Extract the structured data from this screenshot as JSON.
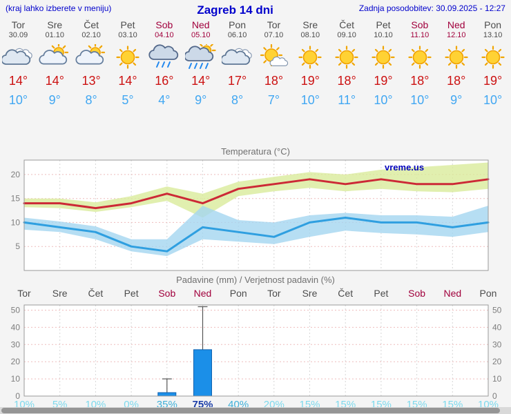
{
  "header": {
    "left_note": "(kraj lahko izberete v meniju)",
    "title": "Zagreb 14 dni",
    "updated": "Zadnja posodobitev: 30.09.2025 - 12:27"
  },
  "watermark": "vreme.us",
  "colors": {
    "link_blue": "#0000cc",
    "max_temp_red": "#cc1111",
    "min_temp_blue": "#41a7f2",
    "weekday_gray": "#4c4c4c",
    "weekend_red": "#a1003c",
    "bar_blue": "#1b8fe8",
    "bar_border": "#0f62b0",
    "prob_high": "#1c3ea8",
    "prob_mid": "#3fb0d8",
    "prob_low": "#7cd9ec",
    "grid_pink": "#eebbbb",
    "grid_gray": "#d6d6d6"
  },
  "days": [
    {
      "name": "Tor",
      "date": "30.09",
      "weekend": false,
      "icon": "cloudy",
      "tmax_label": "14°",
      "tmin_label": "10°",
      "prob_label": "10%"
    },
    {
      "name": "Sre",
      "date": "01.10",
      "weekend": false,
      "icon": "partly-cloudy",
      "tmax_label": "14°",
      "tmin_label": "9°",
      "prob_label": "5%"
    },
    {
      "name": "Čet",
      "date": "02.10",
      "weekend": false,
      "icon": "partly-cloudy",
      "tmax_label": "13°",
      "tmin_label": "8°",
      "prob_label": "10%"
    },
    {
      "name": "Pet",
      "date": "03.10",
      "weekend": false,
      "icon": "sunny",
      "tmax_label": "14°",
      "tmin_label": "5°",
      "prob_label": "0%"
    },
    {
      "name": "Sob",
      "date": "04.10",
      "weekend": true,
      "icon": "rain",
      "tmax_label": "16°",
      "tmin_label": "4°",
      "prob_label": "35%"
    },
    {
      "name": "Ned",
      "date": "05.10",
      "weekend": true,
      "icon": "rain-sun",
      "tmax_label": "14°",
      "tmin_label": "9°",
      "prob_label": "75%"
    },
    {
      "name": "Pon",
      "date": "06.10",
      "weekend": false,
      "icon": "cloudy",
      "tmax_label": "17°",
      "tmin_label": "8°",
      "prob_label": "40%"
    },
    {
      "name": "Tor",
      "date": "07.10",
      "weekend": false,
      "icon": "mostly-sunny",
      "tmax_label": "18°",
      "tmin_label": "7°",
      "prob_label": "20%"
    },
    {
      "name": "Sre",
      "date": "08.10",
      "weekend": false,
      "icon": "sunny",
      "tmax_label": "19°",
      "tmin_label": "10°",
      "prob_label": "15%"
    },
    {
      "name": "Čet",
      "date": "09.10",
      "weekend": false,
      "icon": "sunny",
      "tmax_label": "18°",
      "tmin_label": "11°",
      "prob_label": "15%"
    },
    {
      "name": "Pet",
      "date": "10.10",
      "weekend": false,
      "icon": "sunny",
      "tmax_label": "19°",
      "tmin_label": "10°",
      "prob_label": "15%"
    },
    {
      "name": "Sob",
      "date": "11.10",
      "weekend": true,
      "icon": "sunny",
      "tmax_label": "18°",
      "tmin_label": "10°",
      "prob_label": "15%"
    },
    {
      "name": "Ned",
      "date": "12.10",
      "weekend": true,
      "icon": "sunny",
      "tmax_label": "18°",
      "tmin_label": "9°",
      "prob_label": "15%"
    },
    {
      "name": "Pon",
      "date": "13.10",
      "weekend": false,
      "icon": "sunny",
      "tmax_label": "19°",
      "tmin_label": "10°",
      "prob_label": "10%"
    }
  ],
  "chart_data": [
    {
      "type": "line",
      "title": "Temperatura (°C)",
      "x": [
        "Tor 30.09",
        "Sre 01.10",
        "Čet 02.10",
        "Pet 03.10",
        "Sob 04.10",
        "Ned 05.10",
        "Pon 06.10",
        "Tor 07.10",
        "Sre 08.10",
        "Čet 09.10",
        "Pet 10.10",
        "Sob 11.10",
        "Ned 12.10",
        "Pon 13.10"
      ],
      "series": [
        {
          "name": "max temperature",
          "color": "#cc2936",
          "values": [
            14,
            14,
            13,
            14,
            16,
            14,
            17,
            18,
            19,
            18,
            19,
            18,
            18,
            19
          ]
        },
        {
          "name": "min temperature",
          "color": "#2f9fe0",
          "values": [
            10,
            9,
            8,
            5,
            4,
            9,
            8,
            7,
            10,
            11,
            10,
            10,
            9,
            10
          ]
        }
      ],
      "bands": [
        {
          "name": "max temperature range",
          "color": "#d9eb9b",
          "upper": [
            15,
            15,
            14.2,
            15.5,
            17.5,
            16,
            18.5,
            19.5,
            20.5,
            20,
            21,
            21.5,
            22,
            22.5
          ],
          "lower": [
            13.2,
            13,
            12.2,
            13.2,
            14.5,
            11,
            15.5,
            16.5,
            17.2,
            16.5,
            17,
            16.5,
            16.3,
            17
          ]
        },
        {
          "name": "min temperature range",
          "color": "#a4d6f0",
          "upper": [
            11,
            10.2,
            9.2,
            6.5,
            6.5,
            13.5,
            10.5,
            10,
            11.5,
            12,
            11.5,
            11.5,
            11.2,
            13.5
          ],
          "lower": [
            8.5,
            8,
            6.5,
            4,
            3,
            6.5,
            6,
            5.5,
            7,
            8.3,
            7.8,
            7.5,
            7,
            8
          ]
        }
      ],
      "ylim": [
        0,
        23
      ],
      "yticks": [
        5,
        10,
        15,
        20
      ],
      "grid": true,
      "legend": "none"
    },
    {
      "type": "bar",
      "title": "Padavine (mm) / Verjetnost padavin (%)",
      "categories": [
        "Tor",
        "Sre",
        "Čet",
        "Pet",
        "Sob",
        "Ned",
        "Pon",
        "Tor",
        "Sre",
        "Čet",
        "Pet",
        "Sob",
        "Ned",
        "Pon"
      ],
      "values": [
        0,
        0,
        0,
        0,
        2,
        27,
        0,
        0,
        0,
        0,
        0,
        0,
        0,
        0
      ],
      "whisker_high": [
        0,
        0,
        0,
        0,
        10,
        52,
        0,
        0,
        0,
        0,
        0,
        0,
        0,
        0
      ],
      "probabilities_percent": [
        10,
        5,
        10,
        0,
        35,
        75,
        40,
        20,
        15,
        15,
        15,
        15,
        15,
        10
      ],
      "ylim": [
        0,
        53
      ],
      "yticks": [
        0,
        10,
        20,
        30,
        40,
        50
      ],
      "grid": true,
      "legend": "none"
    }
  ]
}
